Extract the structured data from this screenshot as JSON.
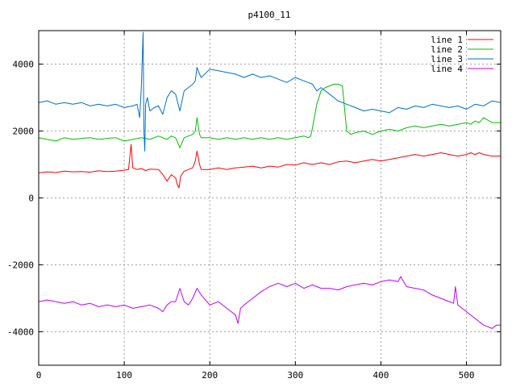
{
  "chart_data": {
    "type": "line",
    "title": "p4100_11",
    "xlabel": "",
    "ylabel": "",
    "xlim": [
      0,
      540
    ],
    "ylim": [
      -5000,
      5000
    ],
    "x_ticks": [
      0,
      100,
      200,
      300,
      400,
      500
    ],
    "y_ticks": [
      -4000,
      -2000,
      0,
      2000,
      4000
    ],
    "grid": true,
    "legend_position": "top-right",
    "series": [
      {
        "name": "line 1",
        "color": "#ff0000",
        "x": [
          0,
          10,
          20,
          30,
          40,
          50,
          60,
          70,
          80,
          90,
          100,
          105,
          108,
          110,
          115,
          120,
          125,
          130,
          140,
          145,
          150,
          155,
          160,
          162,
          164,
          166,
          170,
          175,
          180,
          183,
          185,
          188,
          190,
          200,
          210,
          220,
          230,
          240,
          250,
          260,
          270,
          280,
          290,
          300,
          310,
          320,
          330,
          340,
          350,
          360,
          370,
          380,
          390,
          400,
          410,
          420,
          430,
          440,
          450,
          460,
          470,
          480,
          490,
          500,
          505,
          510,
          515,
          520,
          530,
          540
        ],
        "values": [
          750,
          780,
          760,
          800,
          780,
          790,
          770,
          810,
          790,
          800,
          830,
          850,
          1600,
          900,
          850,
          880,
          820,
          860,
          850,
          700,
          500,
          700,
          600,
          400,
          300,
          650,
          800,
          850,
          900,
          1100,
          1400,
          1000,
          850,
          850,
          900,
          850,
          900,
          920,
          950,
          900,
          950,
          920,
          1000,
          980,
          1050,
          1000,
          1050,
          1000,
          1080,
          1100,
          1050,
          1100,
          1150,
          1100,
          1150,
          1200,
          1250,
          1300,
          1250,
          1300,
          1350,
          1300,
          1250,
          1300,
          1350,
          1300,
          1350,
          1300,
          1250,
          1250
        ]
      },
      {
        "name": "line 2",
        "color": "#00c000",
        "x": [
          0,
          10,
          20,
          30,
          40,
          50,
          60,
          70,
          80,
          90,
          100,
          110,
          120,
          130,
          140,
          150,
          155,
          160,
          165,
          170,
          175,
          180,
          183,
          185,
          188,
          190,
          200,
          210,
          220,
          230,
          240,
          250,
          260,
          270,
          280,
          290,
          300,
          310,
          315,
          318,
          320,
          325,
          330,
          335,
          340,
          345,
          350,
          355,
          360,
          365,
          370,
          380,
          390,
          400,
          410,
          420,
          430,
          440,
          450,
          460,
          470,
          480,
          490,
          500,
          505,
          510,
          515,
          520,
          530,
          540
        ],
        "values": [
          1800,
          1750,
          1700,
          1800,
          1750,
          1780,
          1800,
          1750,
          1780,
          1800,
          1700,
          1750,
          1800,
          1750,
          1850,
          1750,
          1850,
          1800,
          1500,
          1800,
          1850,
          1900,
          2000,
          2400,
          1900,
          1800,
          1800,
          1750,
          1800,
          1750,
          1800,
          1750,
          1800,
          1750,
          1800,
          1750,
          1800,
          1850,
          1800,
          1850,
          2100,
          2800,
          3200,
          3300,
          3350,
          3400,
          3400,
          3350,
          2000,
          1900,
          1950,
          2000,
          1900,
          2000,
          2050,
          2000,
          2100,
          2150,
          2100,
          2150,
          2200,
          2150,
          2200,
          2250,
          2200,
          2300,
          2250,
          2400,
          2250,
          2250
        ]
      },
      {
        "name": "line 3",
        "color": "#0070d0",
        "x": [
          0,
          10,
          20,
          30,
          40,
          50,
          60,
          70,
          80,
          90,
          100,
          110,
          115,
          118,
          120,
          122,
          123,
          124,
          125,
          127,
          130,
          135,
          140,
          145,
          150,
          155,
          160,
          165,
          170,
          175,
          180,
          183,
          185,
          188,
          190,
          200,
          210,
          220,
          230,
          240,
          250,
          260,
          270,
          280,
          290,
          300,
          310,
          320,
          325,
          330,
          340,
          350,
          360,
          370,
          380,
          390,
          400,
          410,
          420,
          430,
          440,
          450,
          460,
          470,
          480,
          490,
          500,
          510,
          520,
          530,
          540
        ],
        "values": [
          2850,
          2900,
          2800,
          2850,
          2800,
          2850,
          2750,
          2800,
          2750,
          2800,
          2700,
          2750,
          2800,
          2400,
          3300,
          4950,
          2000,
          1400,
          2800,
          3000,
          2600,
          2700,
          2750,
          2500,
          3000,
          3200,
          3100,
          2600,
          3200,
          3300,
          3400,
          3500,
          3900,
          3700,
          3600,
          3850,
          3800,
          3750,
          3700,
          3600,
          3700,
          3600,
          3650,
          3550,
          3450,
          3600,
          3500,
          3400,
          3200,
          3300,
          3100,
          2900,
          2800,
          2700,
          2600,
          2650,
          2600,
          2550,
          2700,
          2650,
          2750,
          2700,
          2800,
          2750,
          2700,
          2750,
          2650,
          2800,
          2750,
          2900,
          2850
        ]
      },
      {
        "name": "line 4",
        "color": "#c000ff",
        "x": [
          0,
          10,
          20,
          30,
          40,
          50,
          60,
          70,
          80,
          90,
          100,
          110,
          120,
          130,
          140,
          145,
          150,
          155,
          160,
          165,
          170,
          175,
          180,
          185,
          190,
          200,
          210,
          220,
          225,
          230,
          233,
          236,
          240,
          250,
          260,
          270,
          280,
          290,
          300,
          310,
          320,
          330,
          340,
          350,
          360,
          370,
          380,
          390,
          400,
          410,
          420,
          423,
          430,
          440,
          450,
          460,
          470,
          480,
          485,
          487,
          490,
          500,
          510,
          520,
          530,
          535,
          540
        ],
        "values": [
          -3100,
          -3050,
          -3100,
          -3150,
          -3100,
          -3200,
          -3150,
          -3250,
          -3200,
          -3250,
          -3200,
          -3300,
          -3250,
          -3200,
          -3300,
          -3400,
          -3200,
          -3100,
          -3100,
          -2700,
          -3100,
          -3200,
          -3000,
          -2700,
          -2900,
          -3200,
          -3100,
          -3300,
          -3400,
          -3500,
          -3750,
          -3300,
          -3200,
          -3000,
          -2800,
          -2650,
          -2550,
          -2650,
          -2550,
          -2700,
          -2600,
          -2700,
          -2700,
          -2750,
          -2650,
          -2600,
          -2550,
          -2600,
          -2500,
          -2450,
          -2500,
          -2350,
          -2650,
          -2700,
          -2750,
          -2900,
          -3000,
          -3100,
          -3150,
          -2650,
          -3200,
          -3400,
          -3600,
          -3800,
          -3900,
          -3800,
          -3800
        ]
      }
    ]
  }
}
